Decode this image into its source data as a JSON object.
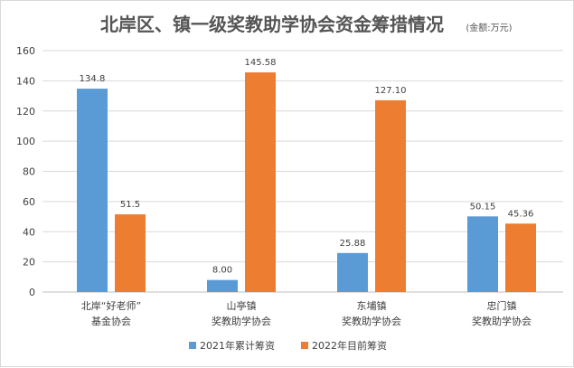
{
  "chart_data": {
    "type": "bar",
    "title": "北岸区、镇一级奖教助学协会资金筹措情况",
    "title_unit": "(金额:万元)",
    "categories": [
      [
        "北岸“好老师”",
        "基金协会"
      ],
      [
        "山亭镇",
        "奖教助学协会"
      ],
      [
        "东埔镇",
        "奖教助学协会"
      ],
      [
        "忠门镇",
        "奖教助学协会"
      ]
    ],
    "series": [
      {
        "name": "2021年累计筹资",
        "color": "#5b9bd5",
        "values": [
          134.8,
          8.0,
          25.88,
          50.15
        ],
        "labels": [
          "134.8",
          "8.00",
          "25.88",
          "50.15"
        ]
      },
      {
        "name": "2022年目前筹资",
        "color": "#ed7d31",
        "values": [
          51.5,
          145.58,
          127.1,
          45.36
        ],
        "labels": [
          "51.5",
          "145.58",
          "127.10",
          "45.36"
        ]
      }
    ],
    "ylim": [
      0,
      160
    ],
    "yticks": [
      0,
      20,
      40,
      60,
      80,
      100,
      120,
      140,
      160
    ],
    "grid": true,
    "legend": "bottom",
    "xlabel": "",
    "ylabel": ""
  }
}
